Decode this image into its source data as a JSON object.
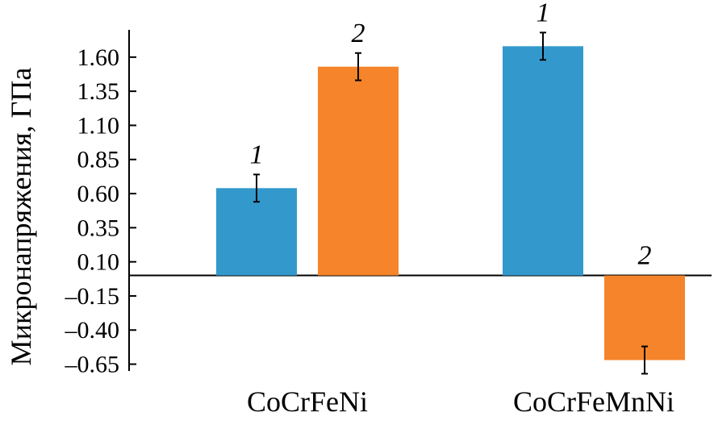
{
  "chart_data": {
    "type": "bar",
    "title": "",
    "xlabel": "",
    "ylabel": "Микронапряжения, ГПа",
    "categories": [
      "CoCrFeNi",
      "CoCrFeMnNi"
    ],
    "yticks": [
      "1.60",
      "1.35",
      "1.10",
      "0.85",
      "0.60",
      "0.35",
      "0.10",
      "–0.15",
      "–0.40",
      "–0.65"
    ],
    "ylim": [
      -0.7,
      1.8
    ],
    "grid": false,
    "series": [
      {
        "name": "1",
        "color": "#3399cc",
        "values": [
          0.64,
          1.68
        ],
        "errors": [
          0.1,
          0.1
        ]
      },
      {
        "name": "2",
        "color": "#f5842a",
        "values": [
          1.53,
          -0.62
        ],
        "errors": [
          0.1,
          0.1
        ]
      }
    ]
  }
}
